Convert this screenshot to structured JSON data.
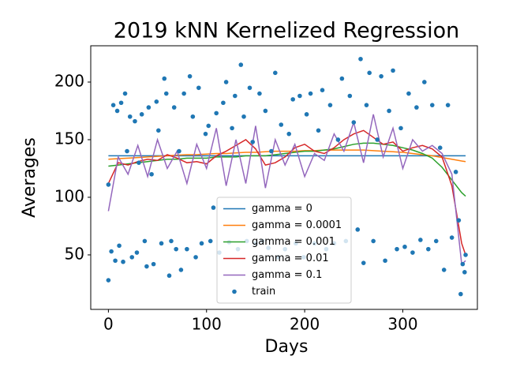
{
  "chart_data": {
    "type": "line",
    "title": "2019 kNN Kernelized Regression",
    "x_label": "Days",
    "y_label": "Averages",
    "xlim": [
      -18,
      376
    ],
    "ylim": [
      2.7,
      231.5
    ],
    "xticks": [
      0,
      100,
      200,
      300
    ],
    "yticks": [
      50,
      100,
      150,
      200
    ],
    "legend": "lower center",
    "x": [
      0,
      10,
      20,
      30,
      40,
      50,
      60,
      70,
      80,
      90,
      100,
      110,
      120,
      130,
      140,
      150,
      160,
      170,
      180,
      190,
      200,
      210,
      220,
      230,
      240,
      250,
      260,
      270,
      280,
      290,
      300,
      310,
      320,
      330,
      340,
      350,
      360,
      364
    ],
    "series": [
      {
        "name": "gamma = 0",
        "color": "#1f77b4",
        "values": [
          136,
          136,
          136,
          136,
          136,
          136,
          136,
          136,
          136,
          136,
          136,
          136,
          136,
          136,
          136,
          136,
          136,
          136,
          136,
          136,
          136,
          136,
          136,
          136,
          136,
          136,
          136,
          136,
          136,
          136,
          136,
          136,
          136,
          136,
          136,
          136,
          136,
          136
        ]
      },
      {
        "name": "gamma = 0.0001",
        "color": "#ff7f0e",
        "values": [
          133,
          133.5,
          134,
          134.5,
          135,
          135.5,
          136,
          136.5,
          137,
          137,
          137.5,
          138,
          138,
          138.5,
          139,
          139,
          139.5,
          140,
          140,
          140,
          140.5,
          140.5,
          141,
          141,
          141,
          141,
          141,
          140.5,
          140,
          139.5,
          139,
          138,
          137,
          136,
          134.5,
          133,
          131.5,
          131
        ]
      },
      {
        "name": "gamma = 0.001",
        "color": "#2ca02c",
        "values": [
          127,
          128,
          129,
          130,
          131,
          132,
          133,
          133,
          134,
          134,
          134,
          135,
          135,
          135,
          136,
          136,
          136,
          137,
          138,
          139,
          140,
          140,
          141,
          142,
          144,
          146,
          147,
          147,
          146,
          145,
          143,
          141,
          138,
          134,
          126,
          115,
          104,
          101
        ]
      },
      {
        "name": "gamma = 0.01",
        "color": "#d62728",
        "values": [
          112,
          130,
          128,
          131,
          133,
          132,
          137,
          134,
          130,
          131,
          129,
          136,
          140,
          145,
          150,
          142,
          128,
          130,
          135,
          143,
          146,
          140,
          138,
          143,
          150,
          155,
          158,
          152,
          146,
          148,
          140,
          143,
          145,
          142,
          135,
          110,
          60,
          50
        ]
      },
      {
        "name": "gamma = 0.1",
        "color": "#9467bd",
        "values": [
          88,
          135,
          120,
          145,
          118,
          150,
          125,
          140,
          112,
          146,
          125,
          160,
          110,
          150,
          112,
          162,
          108,
          150,
          128,
          146,
          118,
          138,
          132,
          155,
          140,
          165,
          130,
          172,
          135,
          160,
          125,
          150,
          140,
          145,
          138,
          120,
          42,
          45
        ]
      },
      {
        "name": "train",
        "color": "#1f77b4",
        "kind": "scatter",
        "x": [
          0,
          0,
          3,
          5,
          7,
          9,
          11,
          13,
          15,
          17,
          19,
          22,
          24,
          27,
          29,
          31,
          34,
          37,
          39,
          41,
          44,
          46,
          49,
          51,
          54,
          57,
          59,
          62,
          64,
          67,
          69,
          72,
          74,
          77,
          80,
          83,
          86,
          89,
          92,
          95,
          99,
          102,
          104,
          107,
          110,
          113,
          117,
          120,
          123,
          126,
          129,
          132,
          135,
          138,
          141,
          144,
          147,
          150,
          154,
          157,
          160,
          163,
          166,
          170,
          173,
          176,
          180,
          184,
          188,
          191,
          195,
          199,
          202,
          206,
          210,
          214,
          218,
          222,
          226,
          230,
          234,
          238,
          242,
          246,
          250,
          254,
          257,
          260,
          263,
          266,
          270,
          274,
          278,
          282,
          286,
          290,
          294,
          298,
          302,
          306,
          310,
          314,
          318,
          322,
          326,
          330,
          334,
          338,
          342,
          346,
          350,
          354,
          357,
          359,
          361,
          363,
          364
        ],
        "values": [
          28,
          111,
          53,
          180,
          45,
          175,
          58,
          182,
          44,
          190,
          140,
          170,
          48,
          166,
          52,
          130,
          172,
          62,
          40,
          178,
          120,
          42,
          183,
          158,
          60,
          203,
          190,
          32,
          62,
          178,
          55,
          140,
          37,
          190,
          55,
          205,
          170,
          48,
          195,
          60,
          155,
          162,
          62,
          91,
          173,
          52,
          182,
          200,
          61,
          160,
          188,
          55,
          215,
          170,
          62,
          195,
          148,
          60,
          190,
          62,
          175,
          56,
          140,
          208,
          48,
          163,
          55,
          155,
          185,
          60,
          188,
          48,
          172,
          190,
          60,
          158,
          193,
          55,
          180,
          60,
          150,
          203,
          62,
          188,
          165,
          72,
          220,
          43,
          180,
          208,
          62,
          150,
          205,
          45,
          175,
          210,
          55,
          160,
          57,
          190,
          52,
          178,
          63,
          200,
          55,
          180,
          62,
          143,
          37,
          180,
          65,
          122,
          80,
          16,
          42,
          35,
          50
        ]
      }
    ]
  }
}
